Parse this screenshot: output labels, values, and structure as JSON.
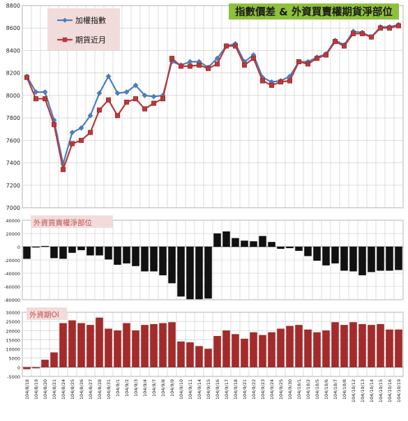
{
  "colors": {
    "index_line": "#4a7fbf",
    "futures_line": "#b83a3a",
    "net_bar": "#111111",
    "oi_bar": "#a52a2a",
    "title_bg": "#8ec03c",
    "title_text": "#1a1a1a",
    "legend_bg": "#f2dcdb",
    "sub_label_bg": "#f2dcdb",
    "sub_label_text": "#c0504d",
    "grid": "#c8c8c8"
  },
  "chart_data": [
    {
      "type": "line",
      "title": "指數價差 & 外資買賣權期貨淨部位",
      "legend_placement": "top-left",
      "grid": true,
      "ylim": [
        7000,
        8800
      ],
      "yticks": [
        7000,
        7200,
        7400,
        7600,
        7800,
        8000,
        8200,
        8400,
        8600,
        8800
      ],
      "x": [
        "104/8/18",
        "104/8/19",
        "104/8/20",
        "104/8/21",
        "104/8/24",
        "104/8/25",
        "104/8/26",
        "104/8/27",
        "104/8/28",
        "104/8/31",
        "104/9/1",
        "104/9/2",
        "104/9/3",
        "104/9/4",
        "104/9/7",
        "104/9/8",
        "104/9/9",
        "104/9/10",
        "104/9/11",
        "104/9/14",
        "104/9/15",
        "104/9/16",
        "104/9/17",
        "104/9/18",
        "104/9/21",
        "104/9/22",
        "104/9/23",
        "104/9/24",
        "104/9/25",
        "104/9/30",
        "104/10/1",
        "104/10/2",
        "104/10/5",
        "104/10/6",
        "104/10/7",
        "104/10/8",
        "104/10/12",
        "104/10/13",
        "104/10/14",
        "104/10/15",
        "104/10/16",
        "104/10/19"
      ],
      "series": [
        {
          "name": "加權指數",
          "values": [
            8170,
            8030,
            8030,
            7780,
            7390,
            7670,
            7710,
            7820,
            8020,
            8170,
            8020,
            8030,
            8090,
            8000,
            7990,
            8000,
            8300,
            8270,
            8300,
            8300,
            8250,
            8330,
            8440,
            8460,
            8300,
            8360,
            8160,
            8120,
            8130,
            8170,
            8300,
            8300,
            8340,
            8370,
            8490,
            8450,
            8570,
            8560,
            8520,
            8610,
            8610,
            8630
          ]
        },
        {
          "name": "期貨近月",
          "values": [
            8160,
            7970,
            7970,
            7740,
            7340,
            7570,
            7600,
            7670,
            7870,
            7960,
            7820,
            7940,
            7970,
            7880,
            7930,
            7970,
            8330,
            8260,
            8260,
            8270,
            8240,
            8280,
            8440,
            8440,
            8270,
            8330,
            8130,
            8090,
            8120,
            8130,
            8300,
            8280,
            8330,
            8360,
            8480,
            8440,
            8550,
            8550,
            8520,
            8600,
            8600,
            8620
          ]
        }
      ]
    },
    {
      "type": "bar",
      "title": "外資買賣權淨部位",
      "grid": true,
      "ylim": [
        -80000,
        40000
      ],
      "yticks": [
        -80000,
        -60000,
        -40000,
        -20000,
        0,
        20000,
        40000
      ],
      "values": [
        -18000,
        -1000,
        1000,
        -17000,
        -18000,
        -9000,
        -5000,
        -13000,
        -13000,
        -19000,
        -27000,
        -25000,
        -29000,
        -37000,
        -37000,
        -43000,
        -55000,
        -75000,
        -79000,
        -79000,
        -78000,
        20000,
        23000,
        13000,
        9000,
        8000,
        16000,
        7000,
        -3000,
        -2000,
        -6000,
        -14000,
        -21000,
        -28000,
        -25000,
        -36000,
        -37000,
        -43000,
        -38000,
        -36000,
        -36000,
        -35000
      ]
    },
    {
      "type": "bar",
      "title": "外資期OI",
      "grid": true,
      "ylim": [
        -5000,
        30000
      ],
      "yticks": [
        -5000,
        0,
        5000,
        10000,
        15000,
        20000,
        25000,
        30000
      ],
      "values": [
        -1000,
        -500,
        4000,
        8000,
        24000,
        25500,
        24000,
        23000,
        27000,
        21000,
        20000,
        24000,
        20000,
        23000,
        23500,
        24000,
        24500,
        14000,
        13500,
        11500,
        10000,
        17000,
        20000,
        18000,
        15500,
        19000,
        17500,
        19000,
        21000,
        22500,
        23000,
        20500,
        19000,
        20000,
        24500,
        23000,
        24500,
        23500,
        23000,
        23500,
        20500,
        20500
      ]
    }
  ]
}
